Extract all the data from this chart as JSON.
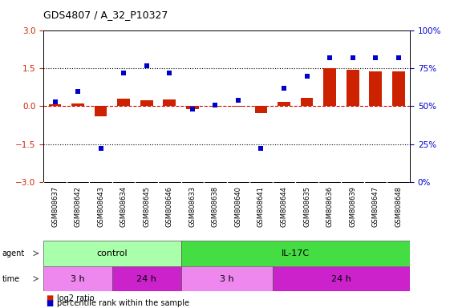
{
  "title": "GDS4807 / A_32_P10327",
  "samples": [
    "GSM808637",
    "GSM808642",
    "GSM808643",
    "GSM808634",
    "GSM808645",
    "GSM808646",
    "GSM808633",
    "GSM808638",
    "GSM808640",
    "GSM808641",
    "GSM808644",
    "GSM808635",
    "GSM808636",
    "GSM808639",
    "GSM808647",
    "GSM808648"
  ],
  "log2_ratio": [
    0.07,
    0.1,
    -0.4,
    0.3,
    0.25,
    0.27,
    -0.12,
    -0.02,
    -0.02,
    -0.28,
    0.18,
    0.35,
    1.5,
    1.45,
    1.4,
    1.4
  ],
  "percentile": [
    53,
    60,
    22,
    72,
    77,
    72,
    48,
    51,
    54,
    22,
    62,
    70,
    82,
    82,
    82,
    82
  ],
  "agent_groups": [
    {
      "label": "control",
      "start": 0,
      "end": 6,
      "color": "#aaffaa"
    },
    {
      "label": "IL-17C",
      "start": 6,
      "end": 16,
      "color": "#44dd44"
    }
  ],
  "time_groups": [
    {
      "label": "3 h",
      "start": 0,
      "end": 3,
      "color": "#ee88ee"
    },
    {
      "label": "24 h",
      "start": 3,
      "end": 6,
      "color": "#cc22cc"
    },
    {
      "label": "3 h",
      "start": 6,
      "end": 10,
      "color": "#ee88ee"
    },
    {
      "label": "24 h",
      "start": 10,
      "end": 16,
      "color": "#cc22cc"
    }
  ],
  "bar_color": "#cc2200",
  "dot_color": "#0000cc",
  "hline_color": "#cc0000",
  "dotted_color": "#000000",
  "ylim_left": [
    -3,
    3
  ],
  "yticks_left": [
    -3,
    -1.5,
    0,
    1.5,
    3
  ],
  "yticks_right": [
    0,
    25,
    50,
    75,
    100
  ],
  "ylim_right": [
    0,
    100
  ],
  "background_color": "#ffffff",
  "plot_bg": "#ffffff",
  "legend_red": "log2 ratio",
  "legend_blue": "percentile rank within the sample"
}
